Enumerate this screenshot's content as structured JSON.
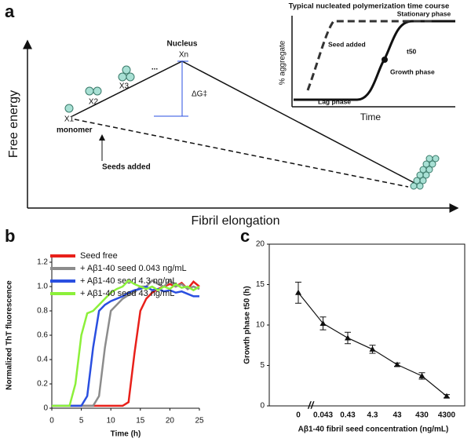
{
  "panel_labels": [
    "a",
    "b",
    "c"
  ],
  "diagram": {
    "y_label": "Free energy",
    "x_label": "Fibril elongation",
    "nucleus": "Nucleus",
    "xn": "Xn",
    "delta_g": "ΔG‡",
    "x1": "X1",
    "x2": "X2",
    "x3": "X3",
    "dots": "...",
    "monomer": "monomer",
    "seeds_added": "Seeds added",
    "inset": {
      "title": "Typical nucleated polymerization time course",
      "stationary": "Stationary phase",
      "seed_added": "Seed added",
      "t50": "t50",
      "growth": "Growth phase",
      "lag": "Lag phase",
      "x_label": "Time",
      "y_label": "% aggregate"
    }
  },
  "chart_data": [
    {
      "type": "line",
      "y_label": "Normalized ThT fluorescence",
      "x_label": "Time (h)",
      "x": [
        0,
        1,
        2,
        3,
        4,
        5,
        6,
        7,
        8,
        9,
        10,
        11,
        12,
        13,
        14,
        15,
        16,
        17,
        18,
        19,
        20,
        21,
        22,
        23,
        24,
        25
      ],
      "xlim": [
        0,
        25
      ],
      "xticks": [
        0,
        5,
        10,
        15,
        20,
        25
      ],
      "ylim": [
        0,
        1.2
      ],
      "yticks": [
        0,
        0.2,
        0.4,
        0.6,
        0.8,
        {
          "value": 1,
          "label": "1.0"
        },
        1.2
      ],
      "series": [
        {
          "name": "Seed free",
          "color": "#e8201a",
          "values": [
            0.02,
            0.02,
            0.02,
            0.02,
            0.02,
            0.02,
            0.02,
            0.02,
            0.02,
            0.02,
            0.02,
            0.02,
            0.02,
            0.05,
            0.45,
            0.8,
            0.9,
            0.95,
            0.98,
            1.0,
            1.02,
            1.0,
            1.03,
            0.98,
            1.04,
            1.0
          ]
        },
        {
          "name": "+ Aβ1-40 seed 0.043 ng/mL",
          "color": "#8c8c8c",
          "values": [
            0.02,
            0.02,
            0.02,
            0.02,
            0.02,
            0.02,
            0.02,
            0.02,
            0.1,
            0.5,
            0.8,
            0.85,
            0.9,
            0.93,
            0.95,
            1.0,
            1.0,
            1.05,
            1.02,
            1.0,
            1.05,
            1.0,
            1.02,
            0.98,
            1.0,
            0.98
          ]
        },
        {
          "name": "+ Aβ1-40 seed 4.3 ng/mL",
          "color": "#2a4fe0",
          "values": [
            0.02,
            0.02,
            0.02,
            0.02,
            0.02,
            0.02,
            0.1,
            0.5,
            0.8,
            0.85,
            0.88,
            0.9,
            0.92,
            0.95,
            0.97,
            0.98,
            1.0,
            0.97,
            0.98,
            0.96,
            0.97,
            0.95,
            0.96,
            0.94,
            0.92,
            0.92
          ]
        },
        {
          "name": "+ Aβ1-40 seed 43 ng/mL",
          "color": "#8cf03a",
          "values": [
            0.02,
            0.02,
            0.02,
            0.02,
            0.2,
            0.6,
            0.78,
            0.8,
            0.85,
            0.9,
            0.95,
            0.98,
            1.0,
            1.05,
            1.02,
            1.0,
            0.98,
            1.0,
            0.97,
            1.0,
            0.98,
            1.02,
            0.99,
            1.0,
            0.97,
            1.0
          ]
        }
      ]
    },
    {
      "type": "errorline",
      "y_label": "Growth phase t50 (h)",
      "x_label": "Aβ1-40 fibril seed concentration (ng/mL)",
      "categories": [
        "0",
        "0.043",
        "0.43",
        "4.3",
        "43",
        "430",
        "4300"
      ],
      "values": [
        14,
        10.2,
        8.4,
        7,
        5.1,
        3.7,
        1.2
      ],
      "errors": [
        1.3,
        0.8,
        0.7,
        0.5,
        0.2,
        0.4,
        0.2
      ],
      "ylim": [
        0,
        20
      ],
      "yticks": [
        0,
        5,
        10,
        15,
        20
      ],
      "color": "#111111"
    }
  ]
}
